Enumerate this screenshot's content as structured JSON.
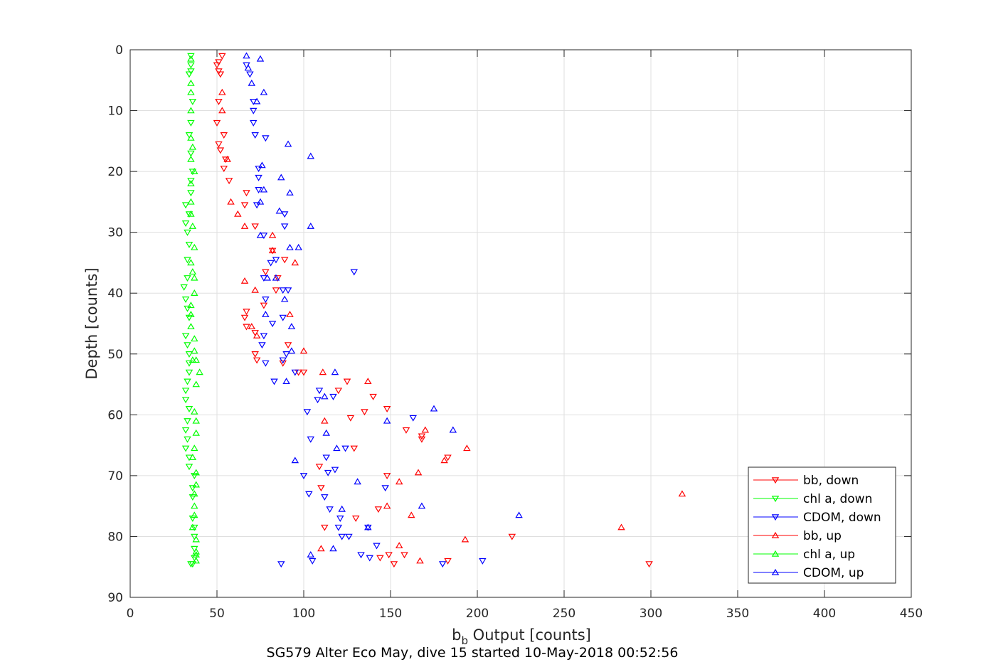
{
  "chart_data": {
    "type": "scatter",
    "xlabel_main": "b",
    "xlabel_sub": "b",
    "xlabel_rest": " Output [counts]",
    "ylabel": "Depth [counts]",
    "caption": "SG579 Alter Eco May, dive 15 started 10-May-2018 00:52:56",
    "xlim": [
      0,
      450
    ],
    "ylim": [
      0,
      90
    ],
    "y_reversed": true,
    "grid": true,
    "legend_placement": "bottom-right",
    "xticks": [
      "0",
      "50",
      "100",
      "150",
      "200",
      "250",
      "300",
      "350",
      "400",
      "450"
    ],
    "yticks": [
      "0",
      "10",
      "20",
      "30",
      "40",
      "50",
      "60",
      "70",
      "80",
      "90"
    ],
    "series": [
      {
        "name": "bb, down",
        "color": "#ff0000",
        "marker": "down",
        "points": [
          [
            53,
            1
          ],
          [
            51,
            2
          ],
          [
            50,
            2.5
          ],
          [
            51,
            3.5
          ],
          [
            52,
            4
          ],
          [
            51,
            8.5
          ],
          [
            50,
            12
          ],
          [
            54,
            14
          ],
          [
            51,
            15.5
          ],
          [
            52,
            16.5
          ],
          [
            55,
            18
          ],
          [
            54,
            19.5
          ],
          [
            57,
            21.5
          ],
          [
            67,
            23.5
          ],
          [
            66,
            25.5
          ],
          [
            72,
            29
          ],
          [
            82,
            33
          ],
          [
            89,
            34.5
          ],
          [
            78,
            36.5
          ],
          [
            85,
            37.5
          ],
          [
            84,
            39.5
          ],
          [
            77,
            42
          ],
          [
            67,
            43
          ],
          [
            66,
            44
          ],
          [
            67,
            45.5
          ],
          [
            72,
            46.5
          ],
          [
            91,
            48.5
          ],
          [
            72,
            50
          ],
          [
            73,
            51
          ],
          [
            88,
            51.5
          ],
          [
            100,
            53
          ],
          [
            97,
            53
          ],
          [
            125,
            54.5
          ],
          [
            120,
            56
          ],
          [
            140,
            57
          ],
          [
            148,
            59
          ],
          [
            135,
            59.5
          ],
          [
            127,
            60.5
          ],
          [
            159,
            62.5
          ],
          [
            168,
            63.5
          ],
          [
            168,
            64
          ],
          [
            129,
            65.5
          ],
          [
            109,
            68.5
          ],
          [
            183,
            67
          ],
          [
            148,
            70
          ],
          [
            110,
            72
          ],
          [
            220,
            80
          ],
          [
            143,
            75.5
          ],
          [
            130,
            77
          ],
          [
            112,
            78.5
          ],
          [
            158,
            83
          ],
          [
            149,
            83
          ],
          [
            144,
            83.5
          ],
          [
            183,
            84
          ],
          [
            152,
            84.5
          ],
          [
            299,
            84.5
          ]
        ]
      },
      {
        "name": "chl a, down",
        "color": "#00ff00",
        "marker": "down",
        "points": [
          [
            35,
            1
          ],
          [
            35,
            2.5
          ],
          [
            35,
            3.5
          ],
          [
            34,
            4
          ],
          [
            36,
            8.5
          ],
          [
            35,
            12
          ],
          [
            34,
            14
          ],
          [
            35,
            17
          ],
          [
            36,
            20
          ],
          [
            35,
            21.5
          ],
          [
            35,
            23.5
          ],
          [
            32,
            25.5
          ],
          [
            34,
            27
          ],
          [
            32,
            28.5
          ],
          [
            33,
            30
          ],
          [
            34,
            32
          ],
          [
            33,
            34.5
          ],
          [
            33,
            37.5
          ],
          [
            31,
            39
          ],
          [
            32,
            41
          ],
          [
            33,
            42.5
          ],
          [
            34,
            44
          ],
          [
            32,
            47
          ],
          [
            33,
            48.5
          ],
          [
            34,
            50
          ],
          [
            34,
            51.5
          ],
          [
            34,
            53
          ],
          [
            33,
            54.5
          ],
          [
            32,
            56
          ],
          [
            32,
            57.5
          ],
          [
            34,
            59
          ],
          [
            33,
            61
          ],
          [
            32,
            62.5
          ],
          [
            33,
            64
          ],
          [
            32,
            65.5
          ],
          [
            34,
            67
          ],
          [
            34,
            68.5
          ],
          [
            37,
            70
          ],
          [
            36,
            72
          ],
          [
            36,
            73.5
          ],
          [
            36,
            77
          ],
          [
            37,
            78.5
          ],
          [
            37,
            80
          ],
          [
            37,
            82
          ],
          [
            37,
            83.5
          ],
          [
            36,
            84.5
          ],
          [
            35,
            84.5
          ]
        ]
      },
      {
        "name": "CDOM, down",
        "color": "#0000ff",
        "marker": "down",
        "points": [
          [
            67,
            2.5
          ],
          [
            69,
            4
          ],
          [
            71,
            8.5
          ],
          [
            71,
            10
          ],
          [
            71,
            12
          ],
          [
            72,
            14
          ],
          [
            78,
            14.5
          ],
          [
            74,
            19.5
          ],
          [
            74,
            21
          ],
          [
            74,
            23
          ],
          [
            73,
            25.5
          ],
          [
            89,
            27
          ],
          [
            89,
            29
          ],
          [
            77,
            30.5
          ],
          [
            84,
            34.5
          ],
          [
            81,
            35
          ],
          [
            129,
            36.5
          ],
          [
            77,
            37.5
          ],
          [
            88,
            39.5
          ],
          [
            91,
            39.5
          ],
          [
            78,
            41
          ],
          [
            88,
            44
          ],
          [
            82,
            45
          ],
          [
            77,
            47
          ],
          [
            76,
            48.5
          ],
          [
            90,
            50
          ],
          [
            78,
            51.5
          ],
          [
            88,
            51
          ],
          [
            95,
            53
          ],
          [
            83,
            54.5
          ],
          [
            109,
            56
          ],
          [
            117,
            57
          ],
          [
            108,
            57.5
          ],
          [
            102,
            59.5
          ],
          [
            163,
            60.5
          ],
          [
            104,
            64
          ],
          [
            124,
            65.5
          ],
          [
            113,
            67
          ],
          [
            118,
            69
          ],
          [
            114,
            69.5
          ],
          [
            100,
            70
          ],
          [
            147,
            72
          ],
          [
            112,
            73.5
          ],
          [
            103,
            73
          ],
          [
            115,
            75.5
          ],
          [
            121,
            77
          ],
          [
            137,
            78.5
          ],
          [
            120,
            78.5
          ],
          [
            122,
            80
          ],
          [
            126,
            80
          ],
          [
            142,
            81.5
          ],
          [
            105,
            84
          ],
          [
            133,
            83
          ],
          [
            138,
            83.5
          ],
          [
            203,
            84
          ],
          [
            87,
            84.5
          ],
          [
            180,
            84.5
          ]
        ]
      },
      {
        "name": "bb, up",
        "color": "#ff0000",
        "marker": "up",
        "points": [
          [
            53,
            7
          ],
          [
            53,
            10
          ],
          [
            56,
            18
          ],
          [
            58,
            25
          ],
          [
            62,
            27
          ],
          [
            66,
            29
          ],
          [
            82,
            30.5
          ],
          [
            82,
            33
          ],
          [
            95,
            35
          ],
          [
            66,
            38
          ],
          [
            72,
            39.5
          ],
          [
            92,
            43.5
          ],
          [
            70,
            45.5
          ],
          [
            73,
            47
          ],
          [
            100,
            49.5
          ],
          [
            111,
            53
          ],
          [
            137,
            54.5
          ],
          [
            112,
            61
          ],
          [
            170,
            62.5
          ],
          [
            194,
            65.5
          ],
          [
            181,
            67.5
          ],
          [
            166,
            69.5
          ],
          [
            155,
            71
          ],
          [
            318,
            73
          ],
          [
            148,
            75
          ],
          [
            162,
            76.5
          ],
          [
            283,
            78.5
          ],
          [
            193,
            80.5
          ],
          [
            155,
            81.5
          ],
          [
            110,
            82
          ],
          [
            167,
            84
          ]
        ]
      },
      {
        "name": "chl a, up",
        "color": "#00ff00",
        "marker": "up",
        "points": [
          [
            35,
            1.5
          ],
          [
            35,
            5.5
          ],
          [
            35,
            7
          ],
          [
            35,
            10
          ],
          [
            35,
            14.5
          ],
          [
            36,
            16
          ],
          [
            35,
            18
          ],
          [
            37,
            20
          ],
          [
            35,
            22
          ],
          [
            35,
            25
          ],
          [
            35,
            27
          ],
          [
            36,
            29
          ],
          [
            37,
            32.5
          ],
          [
            35,
            35
          ],
          [
            36,
            36.5
          ],
          [
            37,
            37.5
          ],
          [
            37,
            40
          ],
          [
            35,
            42
          ],
          [
            35,
            43.5
          ],
          [
            35,
            45.5
          ],
          [
            37,
            47.5
          ],
          [
            37,
            49.5
          ],
          [
            36,
            51
          ],
          [
            38,
            51
          ],
          [
            40,
            53
          ],
          [
            38,
            55
          ],
          [
            37,
            59.5
          ],
          [
            38,
            61
          ],
          [
            38,
            63
          ],
          [
            37,
            65.5
          ],
          [
            36,
            67
          ],
          [
            38,
            69.5
          ],
          [
            38,
            71.5
          ],
          [
            37,
            73
          ],
          [
            37,
            75
          ],
          [
            37,
            76.5
          ],
          [
            36,
            78.5
          ],
          [
            38,
            80.5
          ],
          [
            38,
            82.5
          ],
          [
            38,
            83
          ],
          [
            38,
            84
          ]
        ]
      },
      {
        "name": "CDOM, up",
        "color": "#0000ff",
        "marker": "up",
        "points": [
          [
            67,
            1
          ],
          [
            75,
            1.5
          ],
          [
            68,
            3
          ],
          [
            70,
            5.5
          ],
          [
            77,
            7
          ],
          [
            73,
            8.5
          ],
          [
            91,
            15.5
          ],
          [
            104,
            17.5
          ],
          [
            76,
            19
          ],
          [
            87,
            21
          ],
          [
            77,
            23
          ],
          [
            92,
            23.5
          ],
          [
            75,
            25
          ],
          [
            86,
            26.5
          ],
          [
            104,
            29
          ],
          [
            75,
            30.5
          ],
          [
            92,
            32.5
          ],
          [
            97,
            32.5
          ],
          [
            79,
            37.5
          ],
          [
            84,
            37.5
          ],
          [
            89,
            41
          ],
          [
            78,
            43.5
          ],
          [
            93,
            45.5
          ],
          [
            93,
            49.5
          ],
          [
            118,
            53
          ],
          [
            90,
            54.5
          ],
          [
            112,
            57
          ],
          [
            175,
            59
          ],
          [
            148,
            61
          ],
          [
            186,
            62.5
          ],
          [
            113,
            63
          ],
          [
            119,
            65.5
          ],
          [
            95,
            67.5
          ],
          [
            131,
            71
          ],
          [
            168,
            75
          ],
          [
            224,
            76.5
          ],
          [
            122,
            75.5
          ],
          [
            137,
            78.5
          ],
          [
            104,
            83
          ],
          [
            117,
            82
          ]
        ]
      }
    ]
  }
}
